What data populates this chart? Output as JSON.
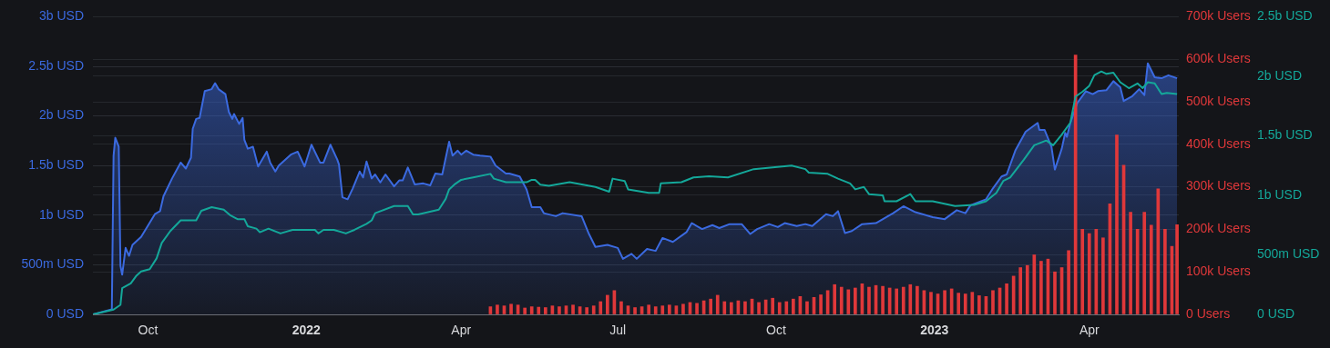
{
  "chart_data": {
    "type": "area",
    "xlim": [
      "2021-08-30",
      "2023-05-23"
    ],
    "xticks": [
      {
        "value": "2021-10-01",
        "label": "Oct"
      },
      {
        "value": "2022-01-01",
        "label": "2022"
      },
      {
        "value": "2022-04-01",
        "label": "Apr"
      },
      {
        "value": "2022-07-01",
        "label": "Jul"
      },
      {
        "value": "2022-10-01",
        "label": "Oct"
      },
      {
        "value": "2023-01-01",
        "label": "2023"
      },
      {
        "value": "2023-04-01",
        "label": "Apr"
      }
    ],
    "ylim": [
      0,
      3000000000
    ],
    "yticks": [
      {
        "value": 0,
        "label": "0 USD"
      },
      {
        "value": 500000000,
        "label": "500m USD"
      },
      {
        "value": 1000000000,
        "label": "1b USD"
      },
      {
        "value": 1500000000,
        "label": "1.5b USD"
      },
      {
        "value": 2000000000,
        "label": "2b USD"
      },
      {
        "value": 2500000000,
        "label": "2.5b USD"
      },
      {
        "value": 3000000000,
        "label": "3b USD"
      }
    ],
    "y2lim": [
      0,
      700000
    ],
    "y2ticks": [
      {
        "value": 0,
        "label": "0 Users"
      },
      {
        "value": 100000,
        "label": "100k Users"
      },
      {
        "value": 200000,
        "label": "200k Users"
      },
      {
        "value": 300000,
        "label": "300k Users"
      },
      {
        "value": 400000,
        "label": "400k Users"
      },
      {
        "value": 500000,
        "label": "500k Users"
      },
      {
        "value": 600000,
        "label": "600k Users"
      },
      {
        "value": 700000,
        "label": "700k Users"
      }
    ],
    "y3lim": [
      0,
      2500000000
    ],
    "y3ticks": [
      {
        "value": 0,
        "label": "0 USD"
      },
      {
        "value": 500000000,
        "label": "500m USD"
      },
      {
        "value": 1000000000,
        "label": "1b USD"
      },
      {
        "value": 1500000000,
        "label": "1.5b USD"
      },
      {
        "value": 2000000000,
        "label": "2b USD"
      },
      {
        "value": 2500000000,
        "label": "2.5b USD"
      }
    ],
    "grid": "y",
    "legend": false,
    "marker": "none",
    "line_style": "solid",
    "series": [
      {
        "axis": "y",
        "color": "#3b6ae0",
        "x": [
          "2021-08-30",
          "2021-09-10",
          "2021-09-11",
          "2021-09-12",
          "2021-09-14",
          "2021-09-15",
          "2021-09-16",
          "2021-09-18",
          "2021-09-20",
          "2021-09-22",
          "2021-09-27",
          "2021-10-05",
          "2021-10-08",
          "2021-10-10",
          "2021-10-15",
          "2021-10-20",
          "2021-10-23",
          "2021-10-26",
          "2021-10-27",
          "2021-10-29",
          "2021-10-31",
          "2021-11-03",
          "2021-11-07",
          "2021-11-09",
          "2021-11-11",
          "2021-11-15",
          "2021-11-17",
          "2021-11-19",
          "2021-11-20",
          "2021-11-23",
          "2021-11-25",
          "2021-11-26",
          "2021-11-28",
          "2021-12-01",
          "2021-12-04",
          "2021-12-09",
          "2021-12-11",
          "2021-12-14",
          "2021-12-16",
          "2021-12-23",
          "2021-12-27",
          "2021-12-31",
          "2022-01-04",
          "2022-01-09",
          "2022-01-11",
          "2022-01-15",
          "2022-01-19",
          "2022-01-20",
          "2022-01-22",
          "2022-01-25",
          "2022-01-28",
          "2022-02-01",
          "2022-02-03",
          "2022-02-05",
          "2022-02-08",
          "2022-02-10",
          "2022-02-13",
          "2022-02-16",
          "2022-02-21",
          "2022-02-24",
          "2022-02-26",
          "2022-03-01",
          "2022-03-05",
          "2022-03-10",
          "2022-03-14",
          "2022-03-17",
          "2022-03-21",
          "2022-03-25",
          "2022-03-27",
          "2022-03-30",
          "2022-04-01",
          "2022-04-04",
          "2022-04-08",
          "2022-04-12",
          "2022-04-18",
          "2022-04-21",
          "2022-04-27",
          "2022-04-29",
          "2022-05-05",
          "2022-05-09",
          "2022-05-12",
          "2022-05-17",
          "2022-05-19",
          "2022-05-26",
          "2022-05-30",
          "2022-06-10",
          "2022-06-14",
          "2022-06-18",
          "2022-06-25",
          "2022-07-01",
          "2022-07-04",
          "2022-07-09",
          "2022-07-12",
          "2022-07-18",
          "2022-07-23",
          "2022-07-27",
          "2022-08-02",
          "2022-08-10",
          "2022-08-13",
          "2022-08-19",
          "2022-08-25",
          "2022-08-29",
          "2022-09-04",
          "2022-09-11",
          "2022-09-16",
          "2022-09-20",
          "2022-09-27",
          "2022-10-02",
          "2022-10-06",
          "2022-10-13",
          "2022-10-18",
          "2022-10-22",
          "2022-10-30",
          "2022-11-03",
          "2022-11-06",
          "2022-11-10",
          "2022-11-14",
          "2022-11-20",
          "2022-11-28",
          "2022-12-08",
          "2022-12-14",
          "2022-12-21",
          "2022-12-31",
          "2023-01-07",
          "2023-01-14",
          "2023-01-19",
          "2023-01-22",
          "2023-01-31",
          "2023-02-04",
          "2023-02-09",
          "2023-02-12",
          "2023-02-17",
          "2023-02-23",
          "2023-03-02",
          "2023-03-03",
          "2023-03-06",
          "2023-03-10",
          "2023-03-12",
          "2023-03-16",
          "2023-03-18",
          "2023-03-19",
          "2023-03-21",
          "2023-03-25",
          "2023-03-30",
          "2023-04-03",
          "2023-04-06",
          "2023-04-11",
          "2023-04-15",
          "2023-04-19",
          "2023-04-21",
          "2023-04-26",
          "2023-04-30",
          "2023-05-03",
          "2023-05-05",
          "2023-05-09",
          "2023-05-13",
          "2023-05-17",
          "2023-05-22"
        ],
        "values": [
          0,
          50000000.0,
          1600000000.0,
          1780000000.0,
          1690000000.0,
          490000000.0,
          400000000.0,
          670000000.0,
          590000000.0,
          700000000.0,
          780000000.0,
          1010000000.0,
          1040000000.0,
          1190000000.0,
          1370000000.0,
          1530000000.0,
          1470000000.0,
          1580000000.0,
          1870000000.0,
          1970000000.0,
          1980000000.0,
          2250000000.0,
          2270000000.0,
          2330000000.0,
          2270000000.0,
          2220000000.0,
          2040000000.0,
          1970000000.0,
          2020000000.0,
          1920000000.0,
          1980000000.0,
          1760000000.0,
          1670000000.0,
          1690000000.0,
          1490000000.0,
          1640000000.0,
          1530000000.0,
          1440000000.0,
          1500000000.0,
          1610000000.0,
          1640000000.0,
          1490000000.0,
          1710000000.0,
          1530000000.0,
          1530000000.0,
          1710000000.0,
          1560000000.0,
          1510000000.0,
          1180000000.0,
          1160000000.0,
          1270000000.0,
          1440000000.0,
          1380000000.0,
          1540000000.0,
          1370000000.0,
          1410000000.0,
          1330000000.0,
          1410000000.0,
          1290000000.0,
          1350000000.0,
          1350000000.0,
          1480000000.0,
          1310000000.0,
          1320000000.0,
          1300000000.0,
          1420000000.0,
          1410000000.0,
          1740000000.0,
          1600000000.0,
          1650000000.0,
          1610000000.0,
          1650000000.0,
          1610000000.0,
          1600000000.0,
          1590000000.0,
          1500000000.0,
          1420000000.0,
          1420000000.0,
          1390000000.0,
          1260000000.0,
          1080000000.0,
          1080000000.0,
          1020000000.0,
          990000000.0,
          1020000000.0,
          990000000.0,
          820000000.0,
          680000000.0,
          700000000.0,
          670000000.0,
          560000000.0,
          610000000.0,
          560000000.0,
          660000000.0,
          640000000.0,
          770000000.0,
          730000000.0,
          830000000.0,
          920000000.0,
          860000000.0,
          900000000.0,
          870000000.0,
          910000000.0,
          910000000.0,
          810000000.0,
          860000000.0,
          910000000.0,
          880000000.0,
          920000000.0,
          890000000.0,
          910000000.0,
          890000000.0,
          1010000000.0,
          990000000.0,
          1040000000.0,
          820000000.0,
          840000000.0,
          910000000.0,
          920000000.0,
          1020000000.0,
          1090000000.0,
          1030000000.0,
          980000000.0,
          960000000.0,
          1050000000.0,
          1020000000.0,
          1100000000.0,
          1160000000.0,
          1270000000.0,
          1390000000.0,
          1410000000.0,
          1650000000.0,
          1840000000.0,
          1930000000.0,
          1860000000.0,
          1860000000.0,
          1690000000.0,
          1460000000.0,
          1670000000.0,
          1830000000.0,
          1790000000.0,
          1930000000.0,
          2130000000.0,
          2250000000.0,
          2220000000.0,
          2250000000.0,
          2260000000.0,
          2350000000.0,
          2290000000.0,
          2150000000.0,
          2200000000.0,
          2270000000.0,
          2210000000.0,
          2530000000.0,
          2390000000.0,
          2380000000.0,
          2410000000.0,
          2380000000.0
        ]
      },
      {
        "type": "bar",
        "axis": "y2",
        "color": "#e0383a",
        "x": [
          "2022-04-18",
          "2022-04-22",
          "2022-04-26",
          "2022-04-30",
          "2022-05-04",
          "2022-05-08",
          "2022-05-12",
          "2022-05-16",
          "2022-05-20",
          "2022-05-24",
          "2022-05-28",
          "2022-06-01",
          "2022-06-05",
          "2022-06-09",
          "2022-06-13",
          "2022-06-17",
          "2022-06-21",
          "2022-06-25",
          "2022-06-29",
          "2022-07-03",
          "2022-07-07",
          "2022-07-11",
          "2022-07-15",
          "2022-07-19",
          "2022-07-23",
          "2022-07-27",
          "2022-07-31",
          "2022-08-04",
          "2022-08-08",
          "2022-08-12",
          "2022-08-16",
          "2022-08-20",
          "2022-08-24",
          "2022-08-28",
          "2022-09-01",
          "2022-09-05",
          "2022-09-09",
          "2022-09-13",
          "2022-09-17",
          "2022-09-21",
          "2022-09-25",
          "2022-09-29",
          "2022-10-03",
          "2022-10-07",
          "2022-10-11",
          "2022-10-15",
          "2022-10-19",
          "2022-10-23",
          "2022-10-27",
          "2022-10-31",
          "2022-11-04",
          "2022-11-08",
          "2022-11-12",
          "2022-11-16",
          "2022-11-20",
          "2022-11-24",
          "2022-11-28",
          "2022-12-02",
          "2022-12-06",
          "2022-12-10",
          "2022-12-14",
          "2022-12-18",
          "2022-12-22",
          "2022-12-26",
          "2022-12-30",
          "2023-01-03",
          "2023-01-07",
          "2023-01-11",
          "2023-01-15",
          "2023-01-19",
          "2023-01-23",
          "2023-01-27",
          "2023-01-31",
          "2023-02-04",
          "2023-02-08",
          "2023-02-12",
          "2023-02-16",
          "2023-02-20",
          "2023-02-24",
          "2023-02-28",
          "2023-03-04",
          "2023-03-08",
          "2023-03-12",
          "2023-03-16",
          "2023-03-20",
          "2023-03-24",
          "2023-03-28",
          "2023-04-01",
          "2023-04-05",
          "2023-04-09",
          "2023-04-13",
          "2023-04-17",
          "2023-04-21",
          "2023-04-25",
          "2023-04-29",
          "2023-05-03",
          "2023-05-07",
          "2023-05-11",
          "2023-05-15",
          "2023-05-19",
          "2023-05-22"
        ],
        "values": [
          18000.0,
          22000.0,
          20000.0,
          24000.0,
          22000.0,
          15000.0,
          18000.0,
          17000.0,
          16000.0,
          20000.0,
          18000.0,
          20000.0,
          22000.0,
          18000.0,
          16000.0,
          20000.0,
          30000.0,
          45000.0,
          56000.0,
          30000.0,
          20000.0,
          16000.0,
          18000.0,
          22000.0,
          18000.0,
          20000.0,
          22000.0,
          20000.0,
          24000.0,
          28000.0,
          26000.0,
          32000.0,
          36000.0,
          45000.0,
          30000.0,
          28000.0,
          32000.0,
          30000.0,
          36000.0,
          28000.0,
          34000.0,
          38000.0,
          28000.0,
          30000.0,
          36000.0,
          42000.0,
          30000.0,
          40000.0,
          46000.0,
          56000.0,
          70000.0,
          64000.0,
          58000.0,
          62000.0,
          72000.0,
          64000.0,
          68000.0,
          66000.0,
          62000.0,
          60000.0,
          64000.0,
          70000.0,
          66000.0,
          56000.0,
          52000.0,
          48000.0,
          56000.0,
          60000.0,
          50000.0,
          48000.0,
          52000.0,
          44000.0,
          42000.0,
          56000.0,
          62000.0,
          72000.0,
          90000.0,
          110000.0,
          115000.0,
          140000.0,
          125000.0,
          130000.0,
          100000.0,
          110000.0,
          150000.0,
          610000.0,
          200000.0,
          190000.0,
          200000.0,
          180000.0,
          260000.0,
          422000.0,
          351000.0,
          240000.0,
          200000.0,
          240000.0,
          210000.0,
          295000.0,
          200000.0,
          160000.0,
          211000.0
        ]
      },
      {
        "type": "line",
        "axis": "y3",
        "color": "#14a89a",
        "x": [
          "2021-08-30",
          "2021-09-11",
          "2021-09-15",
          "2021-09-16",
          "2021-09-21",
          "2021-09-24",
          "2021-09-27",
          "2021-10-02",
          "2021-10-06",
          "2021-10-09",
          "2021-10-14",
          "2021-10-20",
          "2021-10-26",
          "2021-10-29",
          "2021-11-01",
          "2021-11-07",
          "2021-11-14",
          "2021-11-18",
          "2021-11-22",
          "2021-11-26",
          "2021-11-28",
          "2021-12-03",
          "2021-12-05",
          "2021-12-10",
          "2021-12-17",
          "2021-12-24",
          "2022-01-06",
          "2022-01-08",
          "2022-01-11",
          "2022-01-17",
          "2022-01-24",
          "2022-01-29",
          "2022-02-05",
          "2022-02-08",
          "2022-02-10",
          "2022-02-21",
          "2022-03-01",
          "2022-03-04",
          "2022-03-07",
          "2022-03-19",
          "2022-03-23",
          "2022-03-25",
          "2022-03-28",
          "2022-04-01",
          "2022-04-08",
          "2022-04-18",
          "2022-04-20",
          "2022-04-27",
          "2022-05-09",
          "2022-05-12",
          "2022-05-14",
          "2022-05-17",
          "2022-05-22",
          "2022-06-03",
          "2022-06-18",
          "2022-06-26",
          "2022-06-28",
          "2022-07-05",
          "2022-07-07",
          "2022-07-19",
          "2022-07-25",
          "2022-07-26",
          "2022-08-07",
          "2022-08-14",
          "2022-08-23",
          "2022-09-03",
          "2022-09-18",
          "2022-10-10",
          "2022-10-18",
          "2022-10-20",
          "2022-10-31",
          "2022-11-06",
          "2022-11-13",
          "2022-11-16",
          "2022-11-21",
          "2022-11-24",
          "2022-12-02",
          "2022-12-03",
          "2022-12-10",
          "2022-12-18",
          "2022-12-21",
          "2022-12-31",
          "2023-01-13",
          "2023-01-24",
          "2023-01-31",
          "2023-02-06",
          "2023-02-10",
          "2023-02-14",
          "2023-02-22",
          "2023-02-28",
          "2023-03-07",
          "2023-03-11",
          "2023-03-16",
          "2023-03-21",
          "2023-03-24",
          "2023-03-28",
          "2023-04-01",
          "2023-04-04",
          "2023-04-08",
          "2023-04-11",
          "2023-04-15",
          "2023-04-19",
          "2023-04-24",
          "2023-04-29",
          "2023-05-02",
          "2023-05-05",
          "2023-05-09",
          "2023-05-13",
          "2023-05-16",
          "2023-05-22"
        ],
        "values": [
          0,
          40000000.0,
          80000000.0,
          220000000.0,
          260000000.0,
          320000000.0,
          360000000.0,
          380000000.0,
          470000000.0,
          600000000.0,
          700000000.0,
          790000000.0,
          790000000.0,
          790000000.0,
          870000000.0,
          900000000.0,
          880000000.0,
          830000000.0,
          800000000.0,
          800000000.0,
          740000000.0,
          720000000.0,
          690000000.0,
          720000000.0,
          680000000.0,
          710000000.0,
          710000000.0,
          680000000.0,
          710000000.0,
          710000000.0,
          680000000.0,
          710000000.0,
          760000000.0,
          790000000.0,
          850000000.0,
          910000000.0,
          910000000.0,
          840000000.0,
          840000000.0,
          880000000.0,
          970000000.0,
          1050000000.0,
          1090000000.0,
          1130000000.0,
          1150000000.0,
          1180000000.0,
          1140000000.0,
          1110000000.0,
          1110000000.0,
          1130000000.0,
          1130000000.0,
          1090000000.0,
          1080000000.0,
          1110000000.0,
          1070000000.0,
          1030000000.0,
          1140000000.0,
          1120000000.0,
          1050000000.0,
          1020000000.0,
          1020000000.0,
          1100000000.0,
          1110000000.0,
          1150000000.0,
          1160000000.0,
          1150000000.0,
          1220000000.0,
          1250000000.0,
          1220000000.0,
          1190000000.0,
          1180000000.0,
          1140000000.0,
          1100000000.0,
          1050000000.0,
          1070000000.0,
          1010000000.0,
          1000000000.0,
          950000000.0,
          950000000.0,
          1010000000.0,
          950000000.0,
          950000000.0,
          910000000.0,
          920000000.0,
          950000000.0,
          1020000000.0,
          1120000000.0,
          1150000000.0,
          1300000000.0,
          1420000000.0,
          1460000000.0,
          1420000000.0,
          1510000000.0,
          1610000000.0,
          1830000000.0,
          1870000000.0,
          1920000000.0,
          2010000000.0,
          2040000000.0,
          2020000000.0,
          2030000000.0,
          1950000000.0,
          1900000000.0,
          1940000000.0,
          1900000000.0,
          1950000000.0,
          1940000000.0,
          1850000000.0,
          1860000000.0,
          1850000000.0
        ]
      }
    ]
  }
}
